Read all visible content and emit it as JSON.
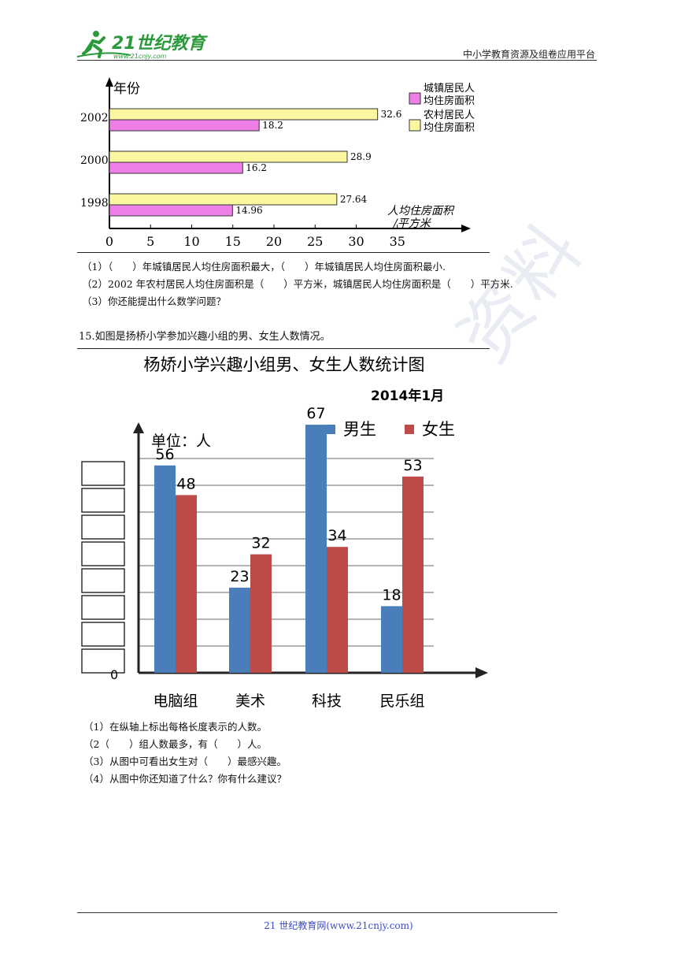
{
  "header": {
    "logo_text": "21世纪教育",
    "logo_url": "www.21cnjy.com",
    "site_name": "中小学教育资源及组卷应用平台"
  },
  "watermark": "资料",
  "chart1": {
    "y_axis_label": "年份",
    "x_axis_label_line1": "人均住房面积",
    "x_axis_label_line2": "/平方米",
    "legend": [
      {
        "line1": "城镇居民人",
        "line2": "均住房面积",
        "color": "#ee7fe6"
      },
      {
        "line1": "农村居民人",
        "line2": "均住房面积",
        "color": "#fbf7a0"
      }
    ]
  },
  "chart_data": [
    {
      "type": "bar",
      "orientation": "horizontal",
      "categories": [
        "2002",
        "2000",
        "1998"
      ],
      "series": [
        {
          "name": "农村居民人均住房面积",
          "values": [
            32.6,
            28.9,
            27.64
          ],
          "labels": [
            "32.6",
            "28.9",
            "27.64"
          ],
          "color": "#fbf7a0"
        },
        {
          "name": "城镇居民人均住房面积",
          "values": [
            18.2,
            16.2,
            14.96
          ],
          "labels": [
            "18.2",
            "16.2",
            "14.96"
          ],
          "color": "#ee7fe6"
        }
      ],
      "x_ticks": [
        "0",
        "5",
        "10",
        "15",
        "20",
        "25",
        "30",
        "35"
      ],
      "xlim": [
        0,
        35
      ],
      "legend_position": "right"
    },
    {
      "type": "bar",
      "title": "杨娇小学兴趣小组男、女生人数统计图",
      "subtitle": "2014年1月",
      "unit_label": "单位：人",
      "origin_label": "0",
      "categories": [
        "电脑组",
        "美术",
        "科技",
        "民乐组"
      ],
      "series": [
        {
          "name": "男生",
          "values": [
            56,
            23,
            67,
            18
          ],
          "labels": [
            "56",
            "23",
            "67",
            "18"
          ],
          "color": "#4a7ebb"
        },
        {
          "name": "女生",
          "values": [
            48,
            32,
            34,
            53
          ],
          "labels": [
            "48",
            "32",
            "34",
            "53"
          ],
          "color": "#be4b48"
        }
      ],
      "grid_lines": 8,
      "legend_position": "top"
    }
  ],
  "questions1": [
    "（1）（　　）年城镇居民人均住房面积最大，（　　）年城镇居民人均住房面积最小.",
    "（2）2002 年农村居民人均住房面积是（　　）平方米，城镇居民人均住房面积是（　　）平方米.",
    "（3）你还能提出什么数学问题？"
  ],
  "problem15": "15.如图是扬桥小学参加兴趣小组的男、女生人数情况。",
  "questions2": [
    "（1）在纵轴上标出每格长度表示的人数。",
    "（2（　　）组人数最多，有（　　）人。",
    "（3）从图中可看出女生对（　　）最感兴趣。",
    "（4）从图中你还知道了什么？你有什么建议？"
  ],
  "footer": {
    "text": "21 世纪教育网(www.21cnjy.com)"
  }
}
